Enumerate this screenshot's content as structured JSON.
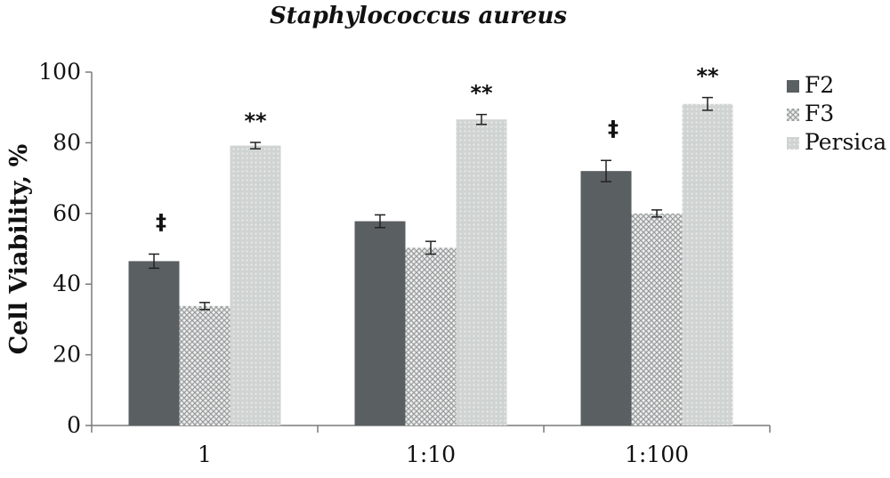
{
  "chart_data": {
    "type": "bar",
    "title": "Staphylococcus aureus",
    "ylabel": "Cell Viability, %",
    "xlabel": "",
    "ylim": [
      0,
      100
    ],
    "yticks": [
      0,
      20,
      40,
      60,
      80,
      100
    ],
    "grid": false,
    "legend_position": "right",
    "categories": [
      "1",
      "1:10",
      "1:100"
    ],
    "series": [
      {
        "name": "F2",
        "values": [
          46.5,
          57.8,
          72.0
        ],
        "errors": [
          2.0,
          1.8,
          3.0
        ],
        "color": "#5a5f61",
        "pattern": "solid"
      },
      {
        "name": "F3",
        "values": [
          33.8,
          50.3,
          60.0
        ],
        "errors": [
          1.0,
          1.8,
          1.0
        ],
        "color": "#b9bdbd",
        "pattern": "crosshatch"
      },
      {
        "name": "Persica",
        "values": [
          79.2,
          86.6,
          91.0
        ],
        "errors": [
          0.9,
          1.4,
          1.8
        ],
        "color": "#c8cccb",
        "pattern": "dots"
      }
    ],
    "annotations": [
      {
        "category": "1",
        "series": "F2",
        "text": "‡"
      },
      {
        "category": "1",
        "series": "Persica",
        "text": "**"
      },
      {
        "category": "1:10",
        "series": "Persica",
        "text": "**"
      },
      {
        "category": "1:100",
        "series": "F2",
        "text": "‡"
      },
      {
        "category": "1:100",
        "series": "Persica",
        "text": "**"
      }
    ]
  }
}
